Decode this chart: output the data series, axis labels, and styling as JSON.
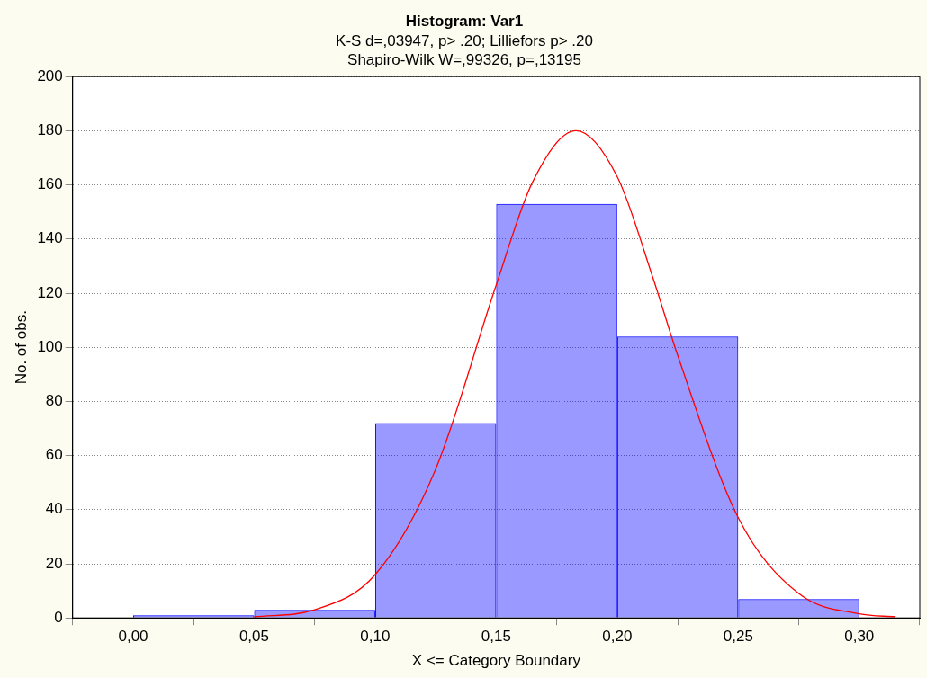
{
  "chart_data": {
    "type": "histogram",
    "title": "Histogram: Var1",
    "subtitle": "K-S d=,03947, p> .20; Lilliefors p> .20\nShapiro-Wilk W=,99326, p=,13195",
    "xlabel": "X <= Category Boundary",
    "ylabel": "No. of obs.",
    "series": [
      {
        "color": "#0000ff",
        "bins": [
          0,
          0.05,
          0.1,
          0.15,
          0.2,
          0.25,
          0.3
        ],
        "values": [
          1,
          3,
          72,
          153,
          104,
          7
        ]
      },
      {
        "type": "line",
        "color": "#ff0000",
        "x": [
          0.05,
          0.075,
          0.1,
          0.125,
          0.15,
          0.165,
          0.183,
          0.2,
          0.215,
          0.225,
          0.25,
          0.275,
          0.3,
          0.315
        ],
        "values": [
          0.4,
          3,
          16,
          55,
          123,
          161,
          180,
          163,
          125,
          97,
          37,
          9,
          1.5,
          0.4
        ]
      }
    ],
    "xlim": [
      -0.025,
      0.325
    ],
    "xticks": [
      {
        "value": 0,
        "label": "0,00"
      },
      {
        "value": 0.05,
        "label": "0,05"
      },
      {
        "value": 0.1,
        "label": "0,10"
      },
      {
        "value": 0.15,
        "label": "0,15"
      },
      {
        "value": 0.2,
        "label": "0,20"
      },
      {
        "value": 0.25,
        "label": "0,25"
      },
      {
        "value": 0.3,
        "label": "0,30"
      }
    ],
    "ylim": [
      0,
      200
    ],
    "yticks": [
      0,
      20,
      40,
      60,
      80,
      100,
      120,
      140,
      160,
      180,
      200
    ],
    "grid": "y",
    "legend": false
  }
}
